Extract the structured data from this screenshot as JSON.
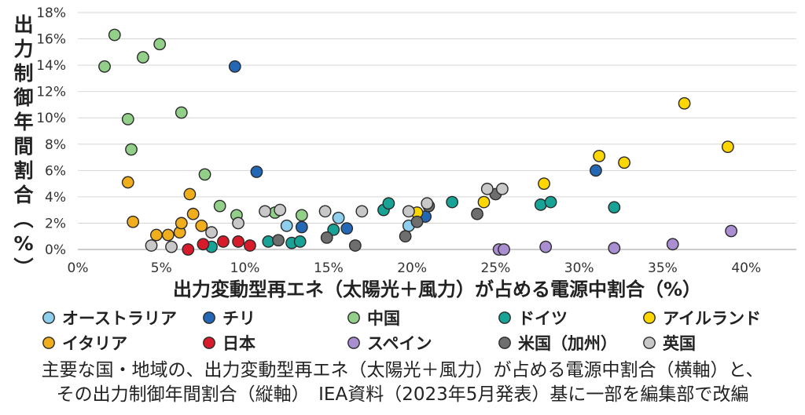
{
  "chart_data": {
    "type": "scatter",
    "title": "",
    "xlabel": "出力変動型再エネ（太陽光＋風力）が占める電源中割合（%）",
    "ylabel": "出力制御年間割合（%）",
    "xlim": [
      0,
      43
    ],
    "ylim": [
      0,
      18
    ],
    "x_ticks": [
      "0%",
      "5%",
      "10%",
      "15%",
      "20%",
      "25%",
      "30%",
      "35%",
      "40%"
    ],
    "y_ticks": [
      "0%",
      "2%",
      "4%",
      "6%",
      "8%",
      "10%",
      "12%",
      "14%",
      "16%",
      "18%"
    ],
    "grid": true,
    "series": [
      {
        "name": "オーストラリア",
        "color": "#8ecfee",
        "points": [
          [
            12.5,
            1.8
          ],
          [
            15.6,
            2.4
          ],
          [
            19.8,
            1.8
          ]
        ]
      },
      {
        "name": "チリ",
        "color": "#2467b4",
        "points": [
          [
            9.4,
            13.9
          ],
          [
            10.7,
            5.9
          ],
          [
            13.4,
            1.7
          ],
          [
            16.1,
            1.6
          ],
          [
            20.8,
            2.5
          ],
          [
            31.0,
            6.0
          ]
        ]
      },
      {
        "name": "中国",
        "color": "#92d08a",
        "points": [
          [
            1.6,
            13.9
          ],
          [
            2.2,
            16.3
          ],
          [
            3.9,
            14.6
          ],
          [
            4.9,
            15.6
          ],
          [
            3.0,
            9.9
          ],
          [
            3.2,
            7.6
          ],
          [
            6.2,
            10.4
          ],
          [
            7.6,
            5.7
          ],
          [
            8.5,
            3.3
          ],
          [
            9.5,
            2.6
          ],
          [
            11.8,
            2.8
          ],
          [
            13.4,
            2.6
          ]
        ]
      },
      {
        "name": "ドイツ",
        "color": "#17a497",
        "points": [
          [
            8.0,
            0.2
          ],
          [
            11.4,
            0.6
          ],
          [
            12.8,
            0.5
          ],
          [
            13.3,
            0.6
          ],
          [
            15.3,
            1.5
          ],
          [
            18.3,
            3.0
          ],
          [
            18.6,
            3.5
          ],
          [
            22.4,
            3.6
          ],
          [
            27.7,
            3.4
          ],
          [
            28.3,
            3.6
          ],
          [
            32.1,
            3.2
          ]
        ]
      },
      {
        "name": "アイルランド",
        "color": "#ffd700",
        "points": [
          [
            20.3,
            2.8
          ],
          [
            24.3,
            3.6
          ],
          [
            27.9,
            5.0
          ],
          [
            31.2,
            7.1
          ],
          [
            32.7,
            6.6
          ],
          [
            36.3,
            11.1
          ],
          [
            38.9,
            7.8
          ]
        ]
      },
      {
        "name": "イタリア",
        "color": "#f0ad1c",
        "points": [
          [
            3.0,
            5.1
          ],
          [
            3.3,
            2.1
          ],
          [
            4.7,
            1.1
          ],
          [
            5.4,
            1.1
          ],
          [
            6.1,
            1.3
          ],
          [
            6.2,
            2.0
          ],
          [
            6.7,
            4.2
          ],
          [
            6.9,
            2.7
          ],
          [
            7.4,
            1.8
          ]
        ]
      },
      {
        "name": "日本",
        "color": "#d81b2b",
        "points": [
          [
            6.6,
            0.0
          ],
          [
            7.5,
            0.4
          ],
          [
            8.7,
            0.6
          ],
          [
            9.6,
            0.6
          ],
          [
            10.3,
            0.3
          ]
        ]
      },
      {
        "name": "スペイン",
        "color": "#a98ed1",
        "points": [
          [
            25.2,
            0.0
          ],
          [
            25.5,
            0.0
          ],
          [
            28.0,
            0.2
          ],
          [
            32.1,
            0.1
          ],
          [
            35.6,
            0.4
          ],
          [
            39.1,
            1.4
          ]
        ]
      },
      {
        "name": "米国（加州）",
        "color": "#6e6e6e",
        "points": [
          [
            12.0,
            0.7
          ],
          [
            14.9,
            0.9
          ],
          [
            16.6,
            0.3
          ],
          [
            19.6,
            1.0
          ],
          [
            20.3,
            2.1
          ],
          [
            21.0,
            3.3
          ],
          [
            23.9,
            2.7
          ],
          [
            25.0,
            4.2
          ]
        ]
      },
      {
        "name": "英国",
        "color": "#c8c8c8",
        "points": [
          [
            4.4,
            0.3
          ],
          [
            5.6,
            0.2
          ],
          [
            8.0,
            1.3
          ],
          [
            9.6,
            2.0
          ],
          [
            11.2,
            2.9
          ],
          [
            12.1,
            3.0
          ],
          [
            14.8,
            2.9
          ],
          [
            17.0,
            2.9
          ],
          [
            19.8,
            2.9
          ],
          [
            20.9,
            3.5
          ],
          [
            24.5,
            4.6
          ],
          [
            25.4,
            4.6
          ]
        ]
      }
    ]
  },
  "caption": {
    "line1": "主要な国・地域の、出力変動型再エネ（太陽光＋風力）が占める電源中割合（横軸）と、",
    "line2": "その出力制御年間割合（縦軸）　IEA資料（2023年5月発表）基に一部を編集部で改編"
  }
}
